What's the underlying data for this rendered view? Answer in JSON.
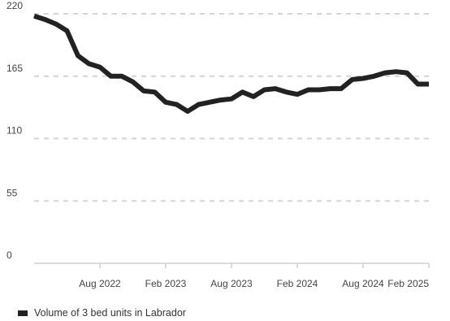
{
  "chart_data": {
    "type": "line",
    "title": "",
    "xlabel": "",
    "ylabel": "",
    "ylim": [
      0,
      220
    ],
    "yticks": [
      0,
      55,
      110,
      165,
      220
    ],
    "xlim": [
      "2022-02",
      "2025-02"
    ],
    "xtick_labels": [
      "Aug 2022",
      "Feb 2023",
      "Aug 2023",
      "Feb 2024",
      "Aug 2024",
      "Feb 2025"
    ],
    "xtick_dates": [
      "2022-08",
      "2023-02",
      "2023-08",
      "2024-02",
      "2024-08",
      "2025-02"
    ],
    "grid": "horizontal dashed",
    "legend_position": "bottom-left",
    "series": [
      {
        "name": "Volume of 3 bed units in Labrador",
        "color": "#222222",
        "x": [
          "2022-02",
          "2022-03",
          "2022-04",
          "2022-05",
          "2022-06",
          "2022-07",
          "2022-08",
          "2022-09",
          "2022-10",
          "2022-11",
          "2022-12",
          "2023-01",
          "2023-02",
          "2023-03",
          "2023-04",
          "2023-05",
          "2023-06",
          "2023-07",
          "2023-08",
          "2023-09",
          "2023-10",
          "2023-11",
          "2023-12",
          "2024-01",
          "2024-02",
          "2024-03",
          "2024-04",
          "2024-05",
          "2024-06",
          "2024-07",
          "2024-08",
          "2024-09",
          "2024-10",
          "2024-11",
          "2024-12",
          "2025-01",
          "2025-02"
        ],
        "values": [
          218,
          215,
          211,
          205,
          183,
          176,
          173,
          165,
          165,
          160,
          152,
          151,
          142,
          140,
          134,
          140,
          142,
          144,
          145,
          151,
          147,
          153,
          154,
          151,
          149,
          153,
          153,
          154,
          154,
          162,
          163,
          165,
          168,
          169,
          168,
          158,
          158
        ]
      }
    ]
  }
}
